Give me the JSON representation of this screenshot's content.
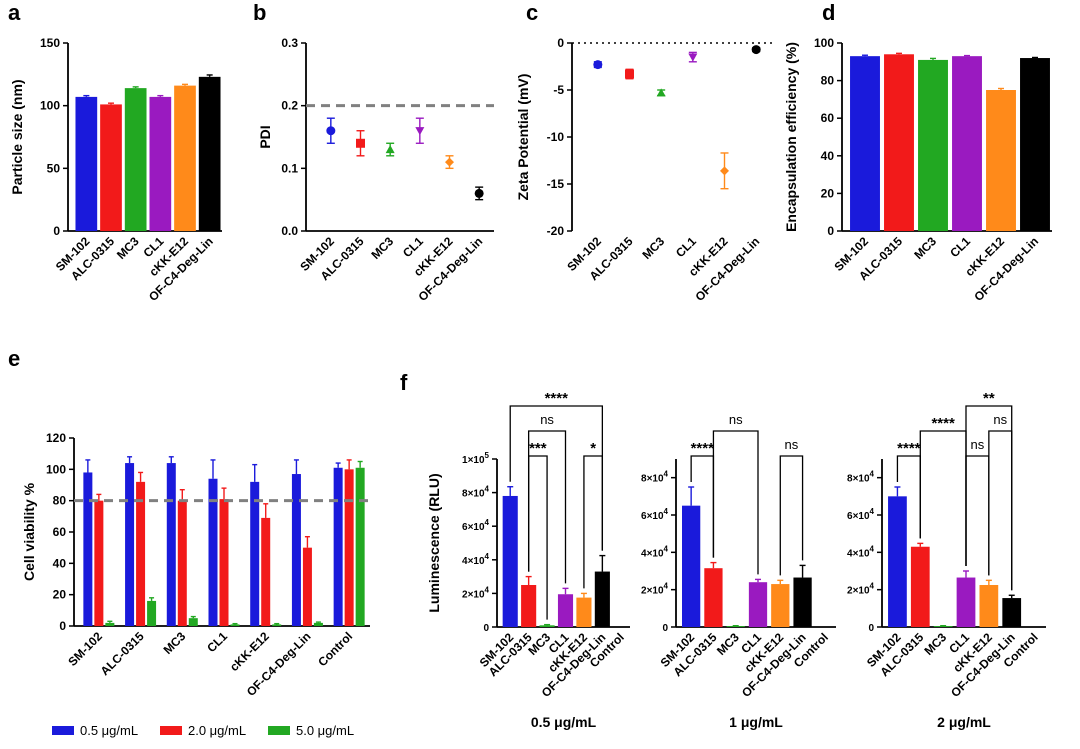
{
  "colors": {
    "blue": "#1a1adb",
    "red": "#f21a1a",
    "green": "#22a822",
    "purple": "#9a1ac0",
    "orange": "#ff8a1a",
    "black": "#000000",
    "ref_line": "#808080"
  },
  "chart_data": [
    {
      "id": "a",
      "panel": "a",
      "type": "bar",
      "categories": [
        "SM-102",
        "ALC-0315",
        "MC3",
        "CL1",
        "cKK-E12",
        "OF-C4-Deg-Lin"
      ],
      "values": [
        107,
        101,
        114,
        107,
        116,
        123
      ],
      "errors": [
        1,
        1,
        1,
        1,
        1,
        1.5
      ],
      "colors": [
        "blue",
        "red",
        "green",
        "purple",
        "orange",
        "black"
      ],
      "ylabel": "Particle size (nm)",
      "ylim": [
        0,
        150
      ],
      "yticks": [
        "0",
        "50",
        "100",
        "150"
      ],
      "yticks_values": [
        0,
        50,
        100,
        150
      ]
    },
    {
      "id": "b",
      "panel": "b",
      "type": "scatter",
      "categories": [
        "SM-102",
        "ALC-0315",
        "MC3",
        "CL1",
        "cKK-E12",
        "OF-C4-Deg-Lin"
      ],
      "values": [
        0.16,
        0.14,
        0.13,
        0.16,
        0.11,
        0.06
      ],
      "errors": [
        0.02,
        0.02,
        0.01,
        0.02,
        0.01,
        0.01
      ],
      "markers": [
        "circle",
        "square",
        "triangle-up",
        "triangle-down",
        "diamond",
        "circle"
      ],
      "colors": [
        "blue",
        "red",
        "green",
        "purple",
        "orange",
        "black"
      ],
      "ylabel": "PDI",
      "ylim": [
        0,
        0.3
      ],
      "yticks": [
        "0.0",
        "0.1",
        "0.2",
        "0.3"
      ],
      "yticks_values": [
        0,
        0.1,
        0.2,
        0.3
      ],
      "reference_line": 0.2
    },
    {
      "id": "c",
      "panel": "c",
      "type": "scatter",
      "categories": [
        "SM-102",
        "ALC-0315",
        "MC3",
        "CL1",
        "cKK-E12",
        "OF-C4-Deg-Lin"
      ],
      "values": [
        -2.3,
        -3.3,
        -5.3,
        -1.5,
        -13.6,
        -0.7
      ],
      "errors": [
        0.3,
        0.5,
        0.3,
        0.5,
        1.9,
        0.2
      ],
      "markers": [
        "circle",
        "square",
        "triangle-up",
        "triangle-down",
        "diamond",
        "circle"
      ],
      "colors": [
        "blue",
        "red",
        "green",
        "purple",
        "orange",
        "black"
      ],
      "ylabel": "Zeta Potential (mV)",
      "ylim": [
        -20,
        0
      ],
      "yticks": [
        "-20",
        "-15",
        "-10",
        "-5",
        "0"
      ],
      "yticks_values": [
        -20,
        -15,
        -10,
        -5,
        0
      ],
      "reference_line": 0
    },
    {
      "id": "d",
      "panel": "d",
      "type": "bar",
      "categories": [
        "SM-102",
        "ALC-0315",
        "MC3",
        "CL1",
        "cKK-E12",
        "OF-C4-Deg-Lin"
      ],
      "values": [
        93,
        94,
        91,
        93,
        75,
        92
      ],
      "errors": [
        0.5,
        0.5,
        0.8,
        0.3,
        0.8,
        0.3
      ],
      "colors": [
        "blue",
        "red",
        "green",
        "purple",
        "orange",
        "black"
      ],
      "ylabel": "Encapsulation efficiency (%)",
      "ylim": [
        0,
        100
      ],
      "yticks": [
        "0",
        "20",
        "40",
        "60",
        "80",
        "100"
      ],
      "yticks_values": [
        0,
        20,
        40,
        60,
        80,
        100
      ]
    },
    {
      "id": "e",
      "panel": "e",
      "type": "bar",
      "categories": [
        "SM-102",
        "ALC-0315",
        "MC3",
        "CL1",
        "cKK-E12",
        "OF-C4-Deg-Lin",
        "Control"
      ],
      "series": [
        {
          "name": "0.5 μg/mL",
          "color": "blue",
          "values": [
            98,
            104,
            104,
            94,
            92,
            97,
            101
          ],
          "errors": [
            8,
            4,
            4,
            12,
            11,
            9,
            3
          ]
        },
        {
          "name": "2.0 μg/mL",
          "color": "red",
          "values": [
            80,
            92,
            80,
            81,
            69,
            50,
            100
          ],
          "errors": [
            4,
            6,
            7,
            7,
            9,
            7,
            6
          ]
        },
        {
          "name": "5.0 μg/mL",
          "color": "green",
          "values": [
            2,
            16,
            5,
            1,
            1,
            2,
            101
          ],
          "errors": [
            1,
            2,
            1,
            0.5,
            0.5,
            0.5,
            4
          ]
        }
      ],
      "ylabel": "Cell viability %",
      "ylim": [
        0,
        120
      ],
      "yticks": [
        "0",
        "20",
        "40",
        "60",
        "80",
        "100",
        "120"
      ],
      "yticks_values": [
        0,
        20,
        40,
        60,
        80,
        100,
        120
      ],
      "reference_line": 80,
      "legend": "bottom"
    },
    {
      "id": "f1",
      "panel": "f",
      "type": "bar",
      "title": "0.5 μg/mL",
      "categories": [
        "SM-102",
        "ALC-0315",
        "MC3",
        "CL1",
        "cKK-E12",
        "OF-C4-Deg-Lin",
        "Control"
      ],
      "values": [
        78000,
        25000,
        1000,
        19500,
        17500,
        33000,
        0
      ],
      "errors": [
        5500,
        5000,
        400,
        3500,
        2500,
        9500,
        0
      ],
      "colors": [
        "blue",
        "red",
        "green",
        "purple",
        "orange",
        "black",
        "black"
      ],
      "ylabel": "Luminescence (RLU)",
      "ylim": [
        0,
        100000
      ],
      "yticks_values": [
        0,
        20000,
        40000,
        60000,
        80000,
        100000
      ],
      "yticks_base": [
        "0",
        "2×10",
        "4×10",
        "6×10",
        "8×10",
        "1×10"
      ],
      "yticks_exp": [
        "",
        "4",
        "4",
        "4",
        "4",
        "5"
      ],
      "significance": [
        {
          "from": "SM-102",
          "to": "OF-C4-Deg-Lin",
          "label": "****",
          "level": 0
        },
        {
          "from": "ALC-0315",
          "to": "CL1",
          "label": "ns",
          "level": 1
        },
        {
          "from": "ALC-0315",
          "to": "MC3",
          "label": "***",
          "level": 2
        },
        {
          "from": "cKK-E12",
          "to": "OF-C4-Deg-Lin",
          "label": "*",
          "level": 2
        }
      ]
    },
    {
      "id": "f2",
      "panel": "f",
      "type": "bar",
      "title": "1 μg/mL",
      "categories": [
        "SM-102",
        "ALC-0315",
        "MC3",
        "CL1",
        "cKK-E12",
        "OF-C4-Deg-Lin",
        "Control"
      ],
      "values": [
        65000,
        31500,
        500,
        24000,
        23000,
        26500,
        0
      ],
      "errors": [
        10000,
        3000,
        200,
        1500,
        2000,
        6500,
        0
      ],
      "colors": [
        "blue",
        "red",
        "green",
        "purple",
        "orange",
        "black",
        "black"
      ],
      "ylim": [
        0,
        90000
      ],
      "yticks_values": [
        0,
        20000,
        40000,
        60000,
        80000
      ],
      "yticks_base": [
        "0",
        "2×10",
        "4×10",
        "6×10",
        "8×10"
      ],
      "yticks_exp": [
        "",
        "4",
        "4",
        "4",
        "4"
      ],
      "significance": [
        {
          "from": "ALC-0315",
          "to": "CL1",
          "label": "ns",
          "level": 1
        },
        {
          "from": "SM-102",
          "to": "ALC-0315",
          "label": "****",
          "level": 2
        },
        {
          "from": "cKK-E12",
          "to": "OF-C4-Deg-Lin",
          "label": "ns",
          "level": 2
        }
      ]
    },
    {
      "id": "f3",
      "panel": "f",
      "type": "bar",
      "title": "2 μg/mL",
      "categories": [
        "SM-102",
        "ALC-0315",
        "MC3",
        "CL1",
        "cKK-E12",
        "OF-C4-Deg-Lin",
        "Control"
      ],
      "values": [
        70000,
        43000,
        500,
        26500,
        22500,
        15500,
        0
      ],
      "errors": [
        5000,
        1800,
        200,
        3500,
        2500,
        1500,
        0
      ],
      "colors": [
        "blue",
        "red",
        "green",
        "purple",
        "orange",
        "black",
        "black"
      ],
      "ylim": [
        0,
        90000
      ],
      "yticks_values": [
        0,
        20000,
        40000,
        60000,
        80000
      ],
      "yticks_base": [
        "0",
        "2×10",
        "4×10",
        "6×10",
        "8×10"
      ],
      "yticks_exp": [
        "",
        "4",
        "4",
        "4",
        "4"
      ],
      "significance": [
        {
          "from": "CL1",
          "to": "OF-C4-Deg-Lin",
          "label": "**",
          "level": 0
        },
        {
          "from": "ALC-0315",
          "to": "CL1",
          "label": "****",
          "level": 1
        },
        {
          "from": "cKK-E12",
          "to": "OF-C4-Deg-Lin",
          "label": "ns",
          "level": 1
        },
        {
          "from": "SM-102",
          "to": "ALC-0315",
          "label": "****",
          "level": 2
        },
        {
          "from": "CL1",
          "to": "cKK-E12",
          "label": "ns",
          "level": 2
        }
      ]
    }
  ]
}
